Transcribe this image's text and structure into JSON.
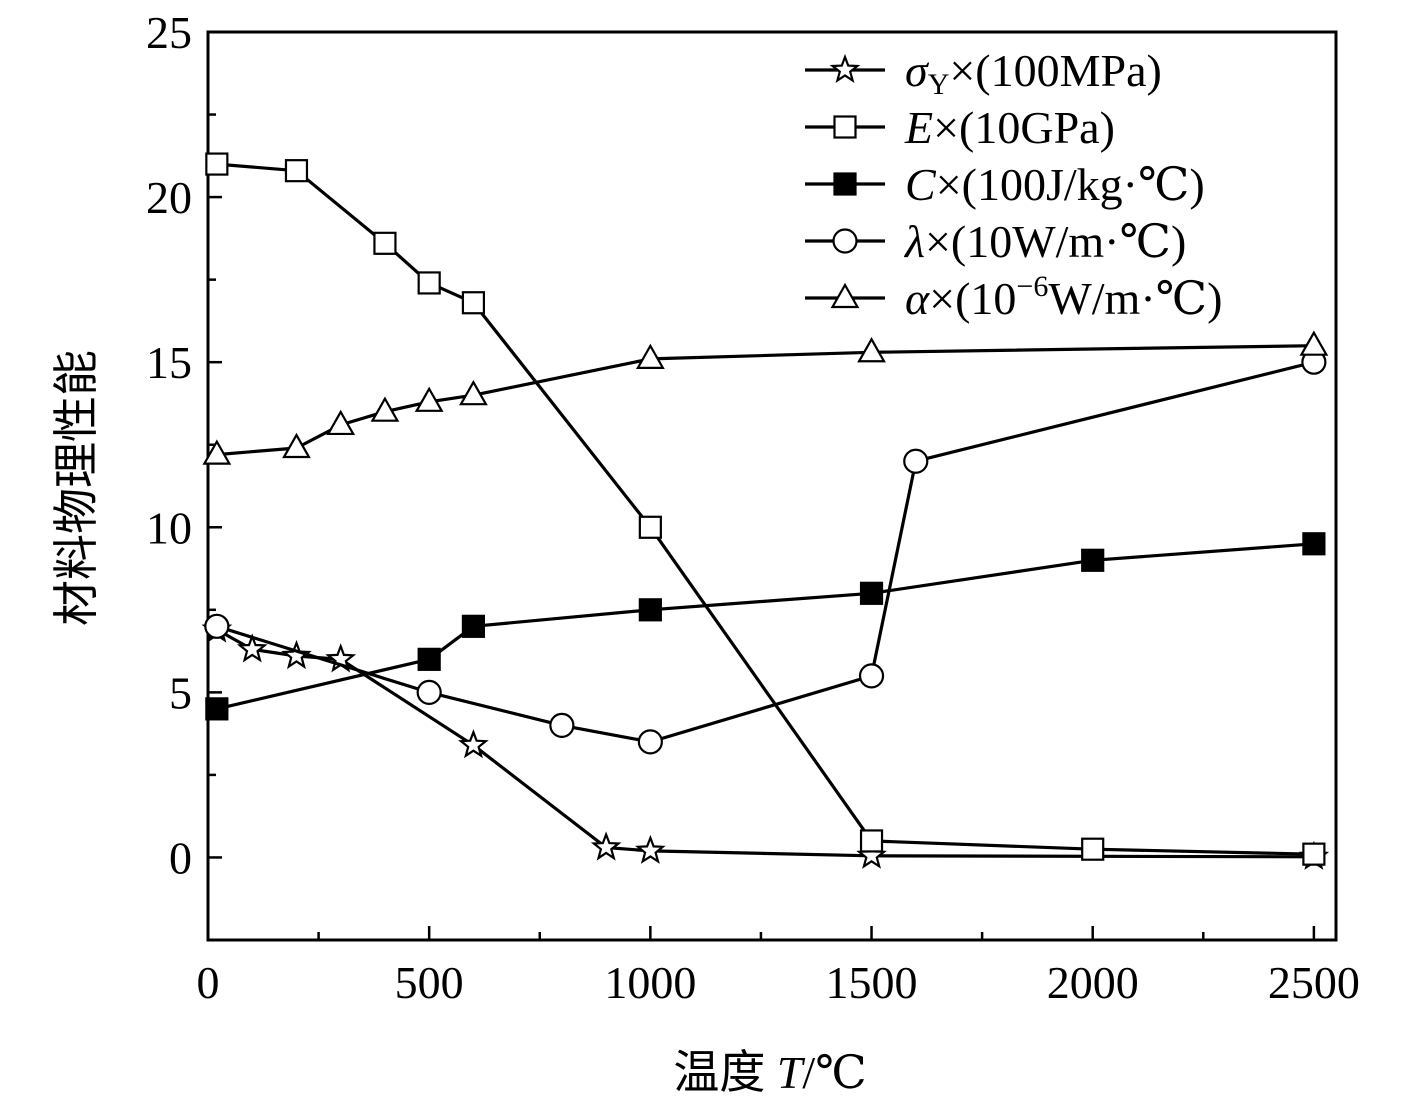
{
  "chart_data": {
    "type": "line",
    "xlabel": "温度 T/℃",
    "xlabel_parts": {
      "prefix": "温度 ",
      "var": "T",
      "unit": "/℃"
    },
    "ylabel": "材料物理性能",
    "xlim": [
      0,
      2550
    ],
    "ylim": [
      -2.5,
      25
    ],
    "xticks": [
      0,
      500,
      1000,
      1500,
      2000,
      2500
    ],
    "xtick_labels": [
      "0",
      "500",
      "1000",
      "1500",
      "2000",
      "2500"
    ],
    "yticks": [
      0,
      5,
      10,
      15,
      20,
      25
    ],
    "ytick_labels": [
      "0",
      "5",
      "10",
      "15",
      "20",
      "25"
    ],
    "grid": false,
    "legend_position": "top-right",
    "series": [
      {
        "name": "σY×(100MPa)",
        "legend": {
          "sym": "σ",
          "sub": "Y",
          "rest": "×(100MPa)"
        },
        "marker": "star",
        "x": [
          20,
          100,
          200,
          300,
          600,
          900,
          1000,
          1500,
          2500
        ],
        "y": [
          6.9,
          6.3,
          6.1,
          6.0,
          3.4,
          0.3,
          0.2,
          0.05,
          0.02
        ]
      },
      {
        "name": "E×(10GPa)",
        "legend": {
          "sym": "E",
          "rest": "×(10GPa)"
        },
        "marker": "square-open",
        "x": [
          20,
          200,
          400,
          500,
          600,
          1000,
          1500,
          2000,
          2500
        ],
        "y": [
          21.0,
          20.8,
          18.6,
          17.4,
          16.8,
          10.0,
          0.5,
          0.25,
          0.1
        ]
      },
      {
        "name": "C×(100J/kg·℃)",
        "legend": {
          "sym": "C",
          "rest": "×(100J/kg·℃)"
        },
        "marker": "square-filled",
        "x": [
          20,
          500,
          600,
          1000,
          1500,
          2000,
          2500
        ],
        "y": [
          4.5,
          6.0,
          7.0,
          7.5,
          8.0,
          9.0,
          9.5
        ]
      },
      {
        "name": "λ×(10W/m·℃)",
        "legend": {
          "sym": "λ",
          "rest": "×(10W/m·℃)"
        },
        "marker": "circle-open",
        "x": [
          20,
          500,
          800,
          1000,
          1500,
          1600,
          2500
        ],
        "y": [
          7.0,
          5.0,
          4.0,
          3.5,
          5.5,
          12.0,
          15.0
        ]
      },
      {
        "name": "α×(10−6W/m·℃)",
        "legend": {
          "sym": "α",
          "rest1": "×(10",
          "sup": "−6",
          "rest2": "W/m·℃)"
        },
        "marker": "triangle-open",
        "x": [
          20,
          200,
          300,
          400,
          500,
          600,
          1000,
          1500,
          2500
        ],
        "y": [
          12.2,
          12.4,
          13.1,
          13.5,
          13.8,
          14.0,
          15.1,
          15.3,
          15.5
        ]
      }
    ]
  }
}
